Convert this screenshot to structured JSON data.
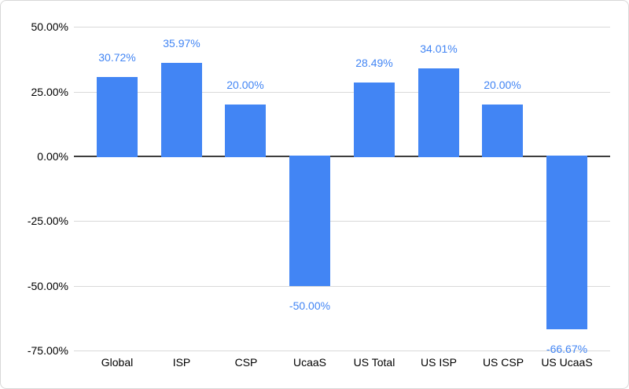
{
  "chart_data": {
    "type": "bar",
    "title": "",
    "xlabel": "",
    "ylabel": "",
    "categories": [
      "Global",
      "ISP",
      "CSP",
      "UcaaS",
      "US Total",
      "US ISP",
      "US CSP",
      "US UcaaS"
    ],
    "values": [
      30.72,
      35.97,
      20.0,
      -50.0,
      28.49,
      34.01,
      20.0,
      -66.67
    ],
    "value_labels": [
      "30.72%",
      "35.97%",
      "20.00%",
      "-50.00%",
      "28.49%",
      "34.01%",
      "20.00%",
      "-66.67%"
    ],
    "ylim": [
      -75,
      50
    ],
    "y_ticks": [
      50,
      25,
      0,
      -25,
      -50,
      -75
    ],
    "y_tick_labels": [
      "50.00%",
      "25.00%",
      "0.00%",
      "-25.00%",
      "-50.00%",
      "-75.00%"
    ],
    "grid": true,
    "legend_position": "none",
    "series_name": ""
  },
  "colors": {
    "bar": "#4285f4",
    "data_label": "#4285f4",
    "gridline": "#d9d9d9",
    "zero_line": "#3d3d3d",
    "axis_text": "#000000",
    "card_border": "#d8d8d8",
    "background": "#ffffff"
  }
}
